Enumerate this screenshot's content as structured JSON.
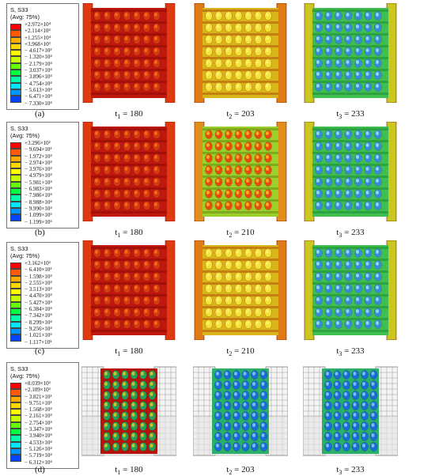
{
  "rows": [
    {
      "tag": "(a)",
      "legend": {
        "title_line1": "S, S33",
        "title_line2": "(Avg: 75%)",
        "values": [
          "+2.972×10⁴",
          "+2.114×10⁴",
          "+1.255×10⁴",
          "+3.968×10³",
          "− 4.617×10³",
          "− 1.320×10⁴",
          "− 2.179×10⁴",
          "− 3.037×10⁴",
          "− 3.896×10⁴",
          "− 4.754×10⁴",
          "− 5.613×10⁴",
          "− 6.471×10⁴",
          "− 7.330×10⁴"
        ]
      },
      "frames": [
        {
          "sub": "1",
          "value": "180",
          "scheme": "red"
        },
        {
          "sub": "2",
          "value": "203",
          "scheme": "yellow"
        },
        {
          "sub": "3",
          "value": "233",
          "scheme": "green"
        }
      ]
    },
    {
      "tag": "(b)",
      "legend": {
        "title_line1": "S, S33",
        "title_line2": "(Avg: 75%)",
        "values": [
          "+3.296×10²",
          "− 9.694×10³",
          "− 1.972×10⁴",
          "− 2.974×10⁴",
          "− 3.976×10⁴",
          "− 4.979×10⁴",
          "− 5.981×10⁴",
          "− 6.983×10⁴",
          "− 7.986×10⁴",
          "− 8.988×10⁴",
          "− 9.990×10⁴",
          "− 1.099×10⁵",
          "− 1.199×10⁵"
        ]
      },
      "frames": [
        {
          "sub": "1",
          "value": "180",
          "scheme": "red"
        },
        {
          "sub": "2",
          "value": "210",
          "scheme": "yellowgreen"
        },
        {
          "sub": "3",
          "value": "233",
          "scheme": "green"
        }
      ]
    },
    {
      "tag": "(c)",
      "legend": {
        "title_line1": "S, S33",
        "title_line2": "(Avg: 75%)",
        "values": [
          "+3.162×10³",
          "− 6.410×10³",
          "− 1.598×10⁴",
          "− 2.555×10⁴",
          "− 3.513×10⁴",
          "− 4.470×10⁴",
          "− 5.427×10⁴",
          "− 6.384×10⁴",
          "− 7.342×10⁴",
          "− 8.299×10⁴",
          "− 9.256×10⁴",
          "− 1.021×10⁵",
          "− 1.117×10⁵"
        ]
      },
      "frames": [
        {
          "sub": "1",
          "value": "180",
          "scheme": "red"
        },
        {
          "sub": "2",
          "value": "210",
          "scheme": "yellow"
        },
        {
          "sub": "3",
          "value": "233",
          "scheme": "green"
        }
      ]
    },
    {
      "tag": "(d)",
      "legend": {
        "title_line1": "S, S33",
        "title_line2": "(Avg: 75%)",
        "values": [
          "+8.039×10³",
          "+2.109×10³",
          "− 3.821×10³",
          "− 9.751×10³",
          "− 1.568×10⁴",
          "− 2.161×10⁴",
          "− 2.754×10⁴",
          "− 3.347×10⁴",
          "− 3.940×10⁴",
          "− 4.533×10⁴",
          "− 5.126×10⁴",
          "− 5.719×10⁴",
          "− 6.312×10⁴"
        ]
      },
      "frames": [
        {
          "sub": "1",
          "value": "180",
          "scheme": "mesh-red"
        },
        {
          "sub": "2",
          "value": "203",
          "scheme": "mesh-green"
        },
        {
          "sub": "3",
          "value": "233",
          "scheme": "mesh-green"
        }
      ]
    }
  ],
  "time_prefix": "t",
  "time_sep": " = ",
  "legend_colors": [
    "#ff0000",
    "#ff5a00",
    "#ffaa00",
    "#ffd700",
    "#ffff00",
    "#c8ff00",
    "#64ff00",
    "#00ff3c",
    "#00ffaa",
    "#00e6ff",
    "#0096ff",
    "#0046ff",
    "#0000ff"
  ]
}
